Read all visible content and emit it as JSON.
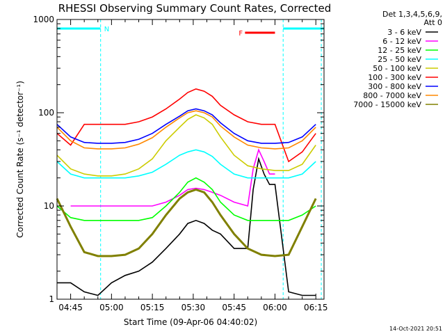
{
  "chart_data": {
    "type": "line",
    "title": "RHESSI Observing Summary Count Rates, Corrected",
    "xlabel": "Start Time (09-Apr-06 04:40:02)",
    "ylabel": "Corrected Count Rate (s⁻¹ detector⁻¹)",
    "x_scale": "time",
    "y_scale": "log",
    "xlim": [
      "04:40",
      "06:18"
    ],
    "ylim": [
      1,
      1000
    ],
    "x_ticks": [
      "04:45",
      "05:00",
      "05:15",
      "05:30",
      "05:45",
      "06:00",
      "06:15"
    ],
    "y_ticks": [
      "1",
      "10",
      "100",
      "1000"
    ],
    "grid": false,
    "legend_position": "right",
    "legend_header": [
      "Det 1,3,4,5,6,9,",
      "Att 0"
    ],
    "series": [
      {
        "name": "3 - 6 keV",
        "color": "#000000",
        "x": [
          "04:40",
          "04:45",
          "04:50",
          "04:55",
          "05:00",
          "05:05",
          "05:10",
          "05:15",
          "05:20",
          "05:25",
          "05:28",
          "05:31",
          "05:34",
          "05:37",
          "05:40",
          "05:45",
          "05:50",
          "05:52",
          "05:54",
          "05:56",
          "05:58",
          "06:00",
          "06:05",
          "06:10",
          "06:15"
        ],
        "y": [
          1.5,
          1.5,
          1.2,
          1.1,
          1.5,
          1.8,
          2.0,
          2.5,
          3.5,
          5.0,
          6.5,
          7.0,
          6.5,
          5.5,
          5.0,
          3.5,
          3.5,
          15,
          32,
          22,
          17,
          17,
          1.2,
          1.1,
          1.1
        ]
      },
      {
        "name": "6 - 12 keV",
        "color": "#ff00ff",
        "x": [
          "04:45",
          "04:50",
          "04:55",
          "05:00",
          "05:05",
          "05:10",
          "05:15",
          "05:20",
          "05:25",
          "05:28",
          "05:31",
          "05:34",
          "05:37",
          "05:40",
          "05:45",
          "05:50",
          "05:52",
          "05:54",
          "05:56",
          "05:58",
          "06:00"
        ],
        "y": [
          10,
          10,
          10,
          10,
          10,
          10,
          10,
          11,
          13,
          15,
          15.5,
          15,
          14,
          13,
          11,
          10,
          25,
          40,
          30,
          22,
          22
        ]
      },
      {
        "name": "12 - 25 keV",
        "color": "#00ff00",
        "x": [
          "04:40",
          "04:45",
          "04:50",
          "04:55",
          "05:00",
          "05:05",
          "05:10",
          "05:15",
          "05:20",
          "05:25",
          "05:28",
          "05:31",
          "05:34",
          "05:37",
          "05:40",
          "05:45",
          "05:50",
          "05:55",
          "06:00",
          "06:05",
          "06:10",
          "06:15"
        ],
        "y": [
          10,
          7.5,
          7,
          7,
          7,
          7,
          7,
          7.5,
          10,
          14,
          18,
          20,
          18,
          15,
          11,
          8,
          7,
          7,
          7,
          7,
          8,
          10
        ]
      },
      {
        "name": "25 - 50 keV",
        "color": "#00ffff",
        "x": [
          "04:40",
          "04:45",
          "04:50",
          "04:55",
          "05:00",
          "05:05",
          "05:10",
          "05:15",
          "05:20",
          "05:25",
          "05:28",
          "05:31",
          "05:34",
          "05:37",
          "05:40",
          "05:45",
          "05:50",
          "05:55",
          "06:00",
          "06:05",
          "06:10",
          "06:15"
        ],
        "y": [
          30,
          22,
          20,
          20,
          20,
          20,
          21,
          23,
          28,
          35,
          38,
          40,
          38,
          34,
          28,
          22,
          20,
          20,
          20,
          20,
          22,
          30
        ]
      },
      {
        "name": "50 - 100 keV",
        "color": "#cccc00",
        "x": [
          "04:40",
          "04:45",
          "04:50",
          "04:55",
          "05:00",
          "05:05",
          "05:10",
          "05:15",
          "05:20",
          "05:25",
          "05:28",
          "05:31",
          "05:34",
          "05:37",
          "05:40",
          "05:45",
          "05:50",
          "05:55",
          "06:00",
          "06:05",
          "06:10",
          "06:15"
        ],
        "y": [
          35,
          25,
          22,
          21,
          21,
          22,
          25,
          32,
          50,
          70,
          85,
          95,
          88,
          75,
          55,
          35,
          27,
          25,
          24,
          24,
          28,
          45
        ]
      },
      {
        "name": "100 - 300 keV",
        "color": "#ff0000",
        "x": [
          "04:40",
          "04:45",
          "04:50",
          "04:55",
          "05:00",
          "05:05",
          "05:10",
          "05:15",
          "05:20",
          "05:25",
          "05:28",
          "05:31",
          "05:34",
          "05:37",
          "05:40",
          "05:45",
          "05:50",
          "05:55",
          "06:00",
          "06:05",
          "06:10",
          "06:15"
        ],
        "y": [
          60,
          45,
          75,
          75,
          75,
          75,
          80,
          90,
          110,
          140,
          165,
          180,
          170,
          150,
          120,
          95,
          80,
          75,
          75,
          30,
          38,
          60
        ]
      },
      {
        "name": "300 - 800 keV",
        "color": "#0000ff",
        "x": [
          "04:40",
          "04:45",
          "04:50",
          "04:55",
          "05:00",
          "05:05",
          "05:10",
          "05:15",
          "05:20",
          "05:25",
          "05:28",
          "05:31",
          "05:34",
          "05:37",
          "05:40",
          "05:45",
          "05:50",
          "05:55",
          "06:00",
          "06:05",
          "06:10",
          "06:15"
        ],
        "y": [
          75,
          55,
          48,
          47,
          47,
          48,
          52,
          60,
          75,
          92,
          105,
          110,
          105,
          95,
          78,
          60,
          50,
          47,
          47,
          48,
          55,
          75
        ]
      },
      {
        "name": "800 - 7000 keV",
        "color": "#ff8800",
        "x": [
          "04:40",
          "04:45",
          "04:50",
          "04:55",
          "05:00",
          "05:05",
          "05:10",
          "05:15",
          "05:20",
          "05:25",
          "05:28",
          "05:31",
          "05:34",
          "05:37",
          "05:40",
          "05:45",
          "05:50",
          "05:55",
          "06:00",
          "06:05",
          "06:10",
          "06:15"
        ],
        "y": [
          70,
          50,
          42,
          41,
          41,
          42,
          46,
          54,
          70,
          88,
          100,
          105,
          100,
          90,
          72,
          55,
          45,
          42,
          41,
          42,
          50,
          70
        ]
      },
      {
        "name": "7000 - 15000 keV",
        "color": "#808000",
        "x": [
          "04:40",
          "04:45",
          "04:50",
          "04:55",
          "05:00",
          "05:05",
          "05:10",
          "05:15",
          "05:20",
          "05:25",
          "05:28",
          "05:31",
          "05:34",
          "05:37",
          "05:40",
          "05:45",
          "05:50",
          "05:55",
          "06:00",
          "06:05",
          "06:10",
          "06:15"
        ],
        "y": [
          12,
          6,
          3.2,
          2.9,
          2.9,
          3.0,
          3.5,
          5,
          8,
          12,
          14,
          15,
          14,
          11,
          8,
          5,
          3.5,
          3,
          2.9,
          3,
          6,
          12
        ]
      }
    ],
    "annotations": [
      {
        "label": "N",
        "color": "#00ffff",
        "x_start": "04:40",
        "x_end": "04:56"
      },
      {
        "label": "",
        "color": "#00ffff",
        "x_start": "06:03",
        "x_end": "06:18"
      },
      {
        "label": "F",
        "color": "#ff0000",
        "x_start": "05:49",
        "x_end": "06:00"
      }
    ],
    "cyan_markers": [
      "04:56",
      "06:03",
      "06:17"
    ]
  },
  "footer_timestamp": "14-Oct-2021 20:51"
}
